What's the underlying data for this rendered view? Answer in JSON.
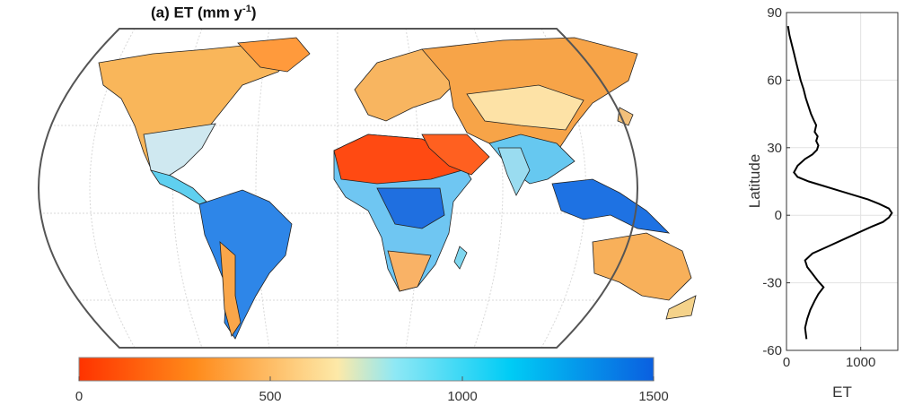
{
  "map": {
    "title_main": "(a) ET (mm y",
    "title_sup": "-1",
    "title_close": ")",
    "projection": "Robinson",
    "colorbar": {
      "ticks": [
        "0",
        "500",
        "1000",
        "1500"
      ],
      "range": [
        0,
        1500
      ],
      "colors": [
        "#ff3300",
        "#ff8a1a",
        "#fde9a8",
        "#8ee8f5",
        "#00ccf5",
        "#0a5fe0"
      ],
      "unit_label_partial": "mm y-1"
    }
  },
  "chart_data": {
    "type": "line",
    "title": "",
    "xlabel": "ET",
    "ylabel": "Latitude",
    "xlim": [
      0,
      1500
    ],
    "ylim": [
      -60,
      90
    ],
    "xticks": [
      "0",
      "1000"
    ],
    "yticks": [
      "-60",
      "-30",
      "0",
      "30",
      "60",
      "90"
    ],
    "grid": true,
    "series": [
      {
        "x": [
          20,
          40,
          70,
          100,
          130,
          160,
          190,
          230,
          260,
          300,
          330,
          370,
          400,
          380,
          420,
          400,
          430,
          410,
          350,
          250,
          150,
          100,
          150,
          300,
          500,
          700,
          900,
          1100,
          1250,
          1380,
          1420,
          1380,
          1300,
          1150,
          950,
          750,
          550,
          350,
          250,
          280,
          350,
          420,
          500,
          430,
          380,
          320,
          280,
          250,
          270
        ],
        "y": [
          84,
          80,
          76,
          72,
          68,
          64,
          60,
          56,
          52,
          48,
          45,
          42,
          40,
          37,
          35,
          33,
          31,
          29,
          27,
          25,
          22,
          19,
          17,
          15,
          13,
          11,
          9,
          7,
          5,
          3,
          1,
          -1,
          -3,
          -5,
          -8,
          -11,
          -14,
          -17,
          -20,
          -23,
          -26,
          -29,
          -32,
          -35,
          -38,
          -42,
          -46,
          -50,
          -55
        ]
      }
    ]
  }
}
